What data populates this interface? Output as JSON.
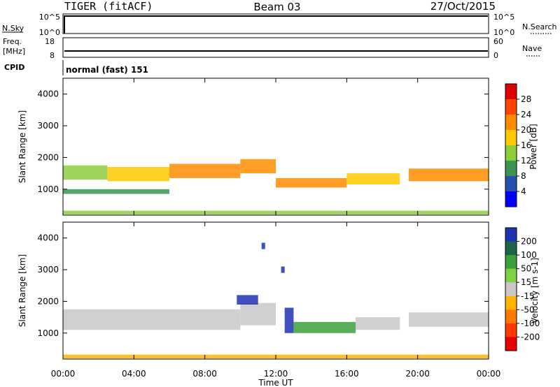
{
  "header": {
    "title": "TIGER (fitACF)",
    "beam": "Beam 03",
    "date": "27/Oct/2015"
  },
  "status_panels": {
    "nsky": {
      "label": "N.Sky",
      "ticks": [
        "10^5",
        "10^0"
      ]
    },
    "nsearch": {
      "label": "N.Search",
      "ticks": [
        "10^5",
        "10^0"
      ],
      "legend_line": "dotted"
    },
    "freq": {
      "label_line1": "Freq.",
      "label_line2": "[MHz]",
      "ticks": [
        "18",
        "8"
      ]
    },
    "nave": {
      "label": "Nave",
      "ticks": [
        "60",
        "0"
      ],
      "legend_line": "dotted"
    },
    "cpid": {
      "label": "CPID",
      "value": "normal (fast) 151"
    }
  },
  "chart_data": [
    {
      "type": "heatmap",
      "name": "power",
      "ylabel": "Slant Range [km]",
      "x_ticks": [
        "00:00",
        "04:00",
        "08:00",
        "12:00",
        "16:00",
        "20:00",
        "00:00"
      ],
      "y_ticks": [
        1000,
        2000,
        3000,
        4000
      ],
      "xlim_hours": [
        0,
        24
      ],
      "ylim_km": [
        180,
        4500
      ],
      "colorbar_label": "Power [dB]",
      "colorbar_ticks": [
        "28",
        "24",
        "20",
        "16",
        "12",
        "8",
        "4"
      ],
      "colorbar_colors": [
        "#e00000",
        "#ff4500",
        "#ff8c00",
        "#ffc800",
        "#8ccd3c",
        "#3c9650",
        "#2850b4",
        "#0000ff"
      ],
      "bands": [
        {
          "t0": 0.0,
          "t1": 2.5,
          "r0": 1300,
          "r1": 1750,
          "level": 14
        },
        {
          "t0": 2.5,
          "t1": 6.0,
          "r0": 1250,
          "r1": 1700,
          "level": 18
        },
        {
          "t0": 6.0,
          "t1": 10.0,
          "r0": 1350,
          "r1": 1800,
          "level": 22
        },
        {
          "t0": 10.0,
          "t1": 12.0,
          "r0": 1500,
          "r1": 1950,
          "level": 20
        },
        {
          "t0": 12.0,
          "t1": 16.0,
          "r0": 1050,
          "r1": 1350,
          "level": 22
        },
        {
          "t0": 16.0,
          "t1": 19.0,
          "r0": 1150,
          "r1": 1500,
          "level": 18
        },
        {
          "t0": 19.5,
          "t1": 24.0,
          "r0": 1250,
          "r1": 1650,
          "level": 20
        },
        {
          "t0": 0.0,
          "t1": 6.0,
          "r0": 850,
          "r1": 1000,
          "level": 10
        },
        {
          "t0": 0.0,
          "t1": 24.0,
          "r0": 200,
          "r1": 320,
          "level": 12
        }
      ]
    },
    {
      "type": "heatmap",
      "name": "velocity",
      "ylabel": "Slant Range [km]",
      "xlabel": "Time UT",
      "x_ticks": [
        "00:00",
        "04:00",
        "08:00",
        "12:00",
        "16:00",
        "20:00",
        "00:00"
      ],
      "y_ticks": [
        1000,
        2000,
        3000,
        4000
      ],
      "xlim_hours": [
        0,
        24
      ],
      "ylim_km": [
        180,
        4500
      ],
      "colorbar_label": "Velocity [m s-1]",
      "colorbar_ticks": [
        "200",
        "100",
        "50",
        "15",
        "-15",
        "-50",
        "-100",
        "-200"
      ],
      "colorbar_colors": [
        "#1e32b4",
        "#1e6446",
        "#3ca03c",
        "#7dd246",
        "#c8c8c8",
        "#ffb400",
        "#ff7800",
        "#ff3c00",
        "#e60000"
      ],
      "bands": [
        {
          "t0": 0.0,
          "t1": 10.0,
          "r0": 1100,
          "r1": 1750,
          "level": 0
        },
        {
          "t0": 10.0,
          "t1": 12.0,
          "r0": 1250,
          "r1": 1950,
          "level": -10
        },
        {
          "t0": 12.5,
          "t1": 13.0,
          "r0": 1000,
          "r1": 1800,
          "level": 200
        },
        {
          "t0": 13.0,
          "t1": 16.5,
          "r0": 1000,
          "r1": 1350,
          "level": 50
        },
        {
          "t0": 16.5,
          "t1": 19.0,
          "r0": 1100,
          "r1": 1500,
          "level": 0
        },
        {
          "t0": 19.5,
          "t1": 24.0,
          "r0": 1200,
          "r1": 1650,
          "level": 0
        },
        {
          "t0": 9.8,
          "t1": 11.0,
          "r0": 1900,
          "r1": 2200,
          "level": 200
        },
        {
          "t0": 11.2,
          "t1": 11.4,
          "r0": 3650,
          "r1": 3850,
          "level": 200
        },
        {
          "t0": 12.3,
          "t1": 12.5,
          "r0": 2900,
          "r1": 3100,
          "level": 200
        },
        {
          "t0": 0.0,
          "t1": 24.0,
          "r0": 200,
          "r1": 320,
          "level": -50
        }
      ]
    }
  ]
}
